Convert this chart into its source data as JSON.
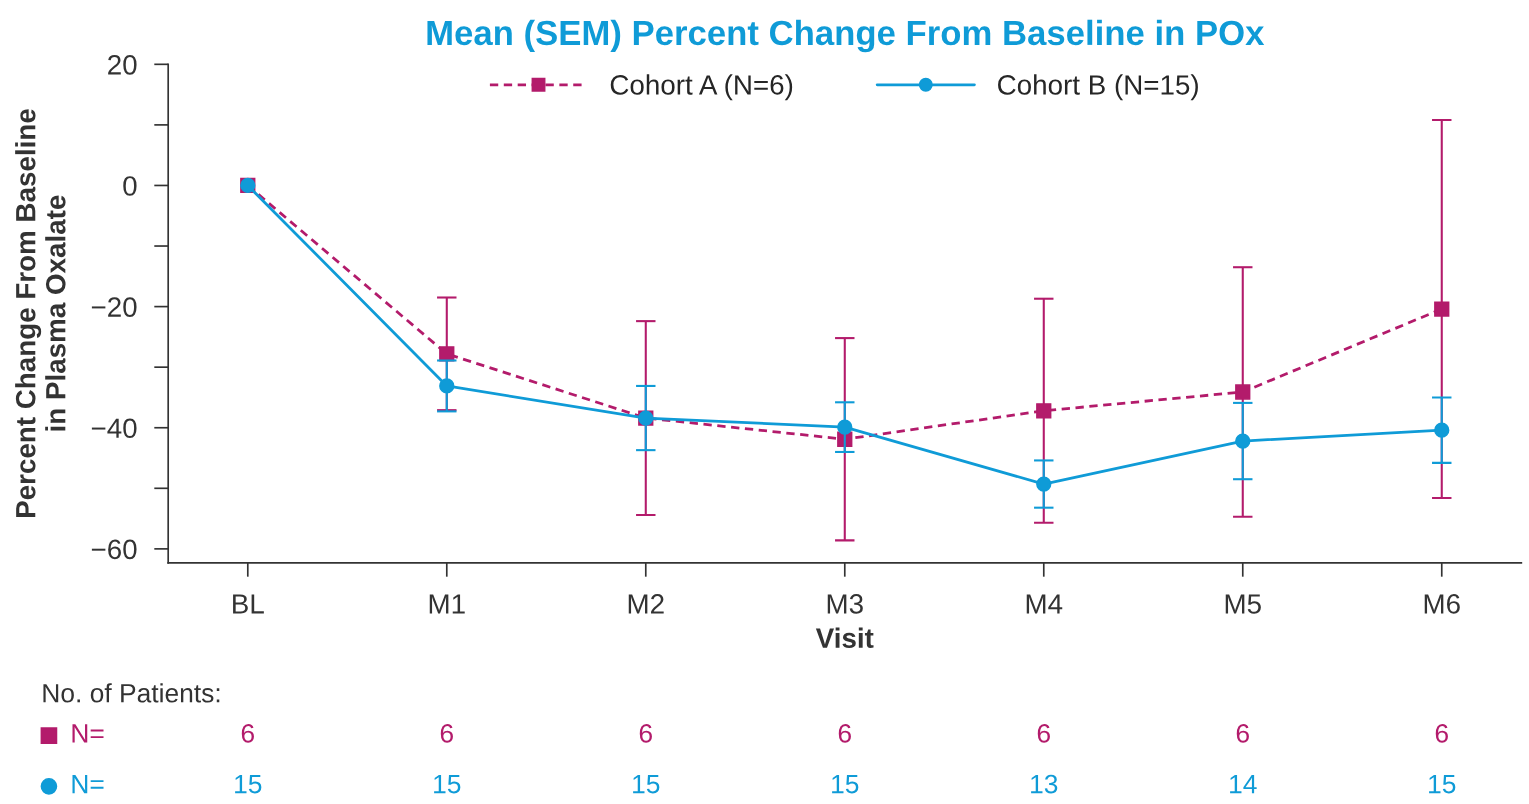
{
  "chart_data": {
    "type": "line",
    "title": "Mean (SEM) Percent Change From Baseline in POx",
    "xlabel": "Visit",
    "ylabel": "Percent Change From Baseline\nin Plasma Oxalate",
    "categories": [
      "BL",
      "M1",
      "M2",
      "M3",
      "M4",
      "M5",
      "M6"
    ],
    "series": [
      {
        "name": "Cohort A (N=6)",
        "color": "#b31b6b",
        "marker": "square",
        "line_style": "dashed",
        "values": [
          0,
          -27.8,
          -38.4,
          -41.9,
          -37.2,
          -34.1,
          -20.4
        ],
        "errors": [
          null,
          9.3,
          16,
          16.7,
          18.5,
          20.6,
          31.2
        ]
      },
      {
        "name": "Cohort B (N=15)",
        "color": "#0f9bd7",
        "marker": "circle",
        "line_style": "solid",
        "values": [
          0,
          -33.1,
          -38.4,
          -39.9,
          -49.3,
          -42.2,
          -40.4
        ],
        "errors": [
          null,
          4.2,
          5.3,
          4.1,
          3.9,
          6.3,
          5.4
        ]
      }
    ],
    "ylim": [
      -62.3,
      20
    ],
    "yticks": [
      20,
      {
        "value": 10,
        "label": null
      },
      0,
      {
        "value": -10,
        "label": null
      },
      {
        "value": -20,
        "label": "−20"
      },
      {
        "value": -30,
        "label": null
      },
      {
        "value": -40,
        "label": "−40"
      },
      {
        "value": -50,
        "label": null
      },
      {
        "value": -60,
        "label": "−60"
      }
    ],
    "grid": false,
    "legend": "top",
    "annotations": [
      "No. of Patients:",
      "N=",
      "6",
      "6",
      "6",
      "6",
      "6",
      "6",
      "6",
      "N=",
      "15",
      "15",
      "15",
      "15",
      "13",
      "14",
      "15"
    ]
  }
}
